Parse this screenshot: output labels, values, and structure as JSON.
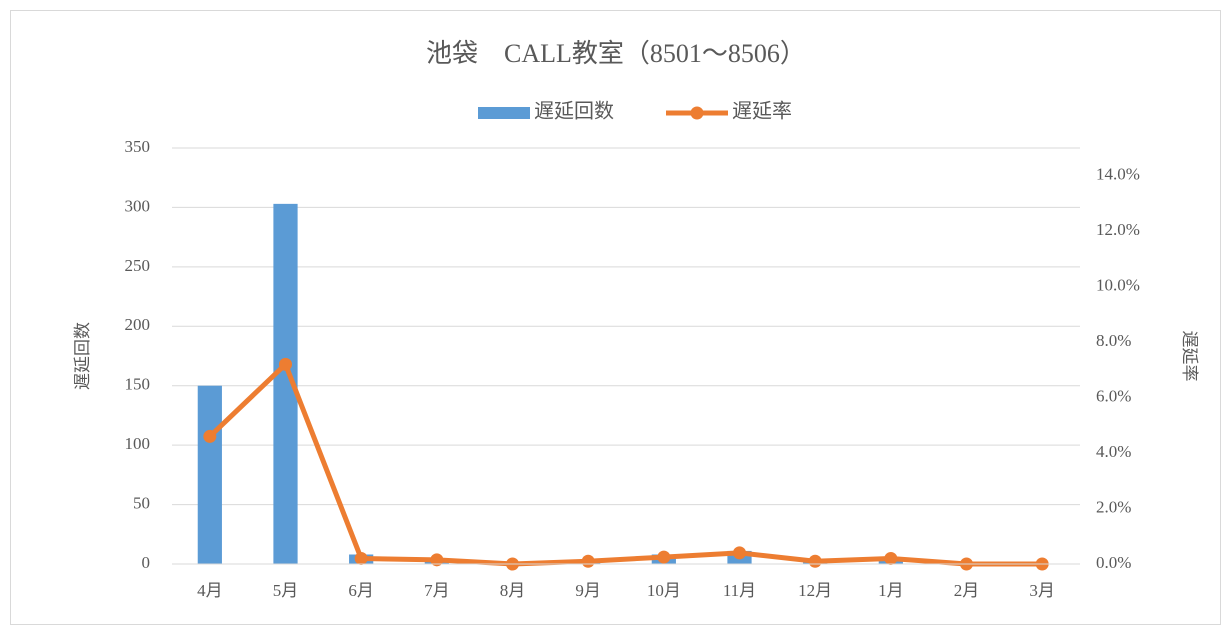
{
  "chart_data": {
    "type": "bar_line",
    "title": "池袋　CALL教室（8501～8506）",
    "y_label": "遅延回数",
    "y2_label": "遅延率",
    "categories": [
      "4月",
      "5月",
      "6月",
      "7月",
      "8月",
      "9月",
      "10月",
      "11月",
      "12月",
      "1月",
      "2月",
      "3月"
    ],
    "series": [
      {
        "name": "遅延回数",
        "type": "bar",
        "color": "#5b9bd5",
        "values": [
          150,
          303,
          8,
          3,
          0,
          1,
          8,
          11,
          2,
          3,
          0,
          0
        ]
      },
      {
        "name": "遅延率",
        "type": "line",
        "axis": "y2",
        "color": "#ed7d31",
        "values": [
          4.6,
          7.2,
          0.2,
          0.15,
          0.0,
          0.1,
          0.25,
          0.4,
          0.1,
          0.2,
          0.0,
          0.0
        ]
      }
    ],
    "ylim": [
      0,
      350
    ],
    "yticks": [
      0,
      50,
      100,
      150,
      200,
      250,
      300,
      350
    ],
    "y2lim": [
      0,
      15
    ],
    "y2ticks": [
      {
        "value": 0,
        "label": "0.0%"
      },
      {
        "value": 2,
        "label": "2.0%"
      },
      {
        "value": 4,
        "label": "4.0%"
      },
      {
        "value": 6,
        "label": "6.0%"
      },
      {
        "value": 8,
        "label": "8.0%"
      },
      {
        "value": 10,
        "label": "10.0%"
      },
      {
        "value": 12,
        "label": "12.0%"
      },
      {
        "value": 14,
        "label": "14.0%"
      }
    ],
    "grid": true,
    "legend": "top"
  }
}
